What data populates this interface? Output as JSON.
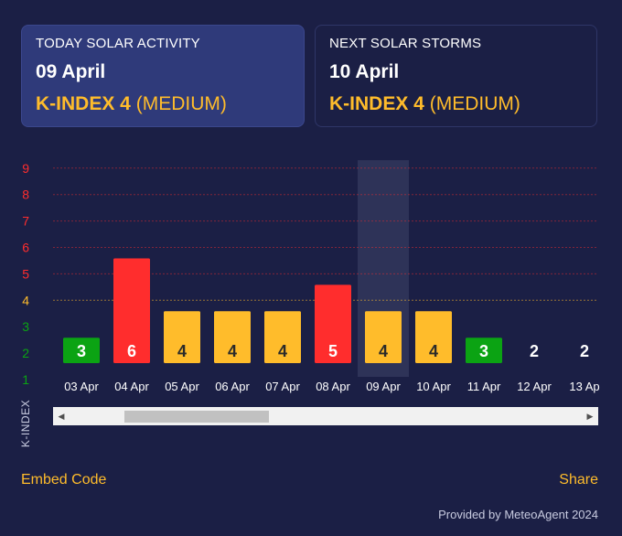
{
  "today": {
    "label": "TODAY SOLAR ACTIVITY",
    "date": "09 April",
    "kindex_label": "K-INDEX 4",
    "level": "(MEDIUM)"
  },
  "next": {
    "label": "NEXT SOLAR STORMS",
    "date": "10 April",
    "kindex_label": "K-INDEX 4",
    "level": "(MEDIUM)"
  },
  "chart_data": {
    "type": "bar",
    "categories": [
      "03 Apr",
      "04 Apr",
      "05 Apr",
      "06 Apr",
      "07 Apr",
      "08 Apr",
      "09 Apr",
      "10 Apr",
      "11 Apr",
      "12 Apr",
      "13 Ap"
    ],
    "values": [
      3,
      6,
      4,
      4,
      4,
      5,
      4,
      4,
      3,
      2,
      2
    ],
    "ylabel": "K-INDEX",
    "yticks": [
      1,
      2,
      3,
      4,
      5,
      6,
      7,
      8,
      9
    ],
    "ylim": [
      1,
      9
    ],
    "highlight_category": "09 Apr",
    "colors": {
      "low": "#0ba313",
      "medium": "#ffbc2b",
      "high": "#ff2d2d",
      "highlight": "#2e3358"
    },
    "ytick_colors": [
      "#0ba313",
      "#0ba313",
      "#0ba313",
      "#ffbc2b",
      "#ff2d2d",
      "#ff2d2d",
      "#ff2d2d",
      "#ff2d2d",
      "#ff2d2d"
    ]
  },
  "footer": {
    "embed": "Embed Code",
    "share": "Share",
    "provided": "Provided by MeteoAgent 2024"
  },
  "icons": {
    "scroll_left": "triangle-left-icon",
    "scroll_right": "triangle-right-icon"
  }
}
